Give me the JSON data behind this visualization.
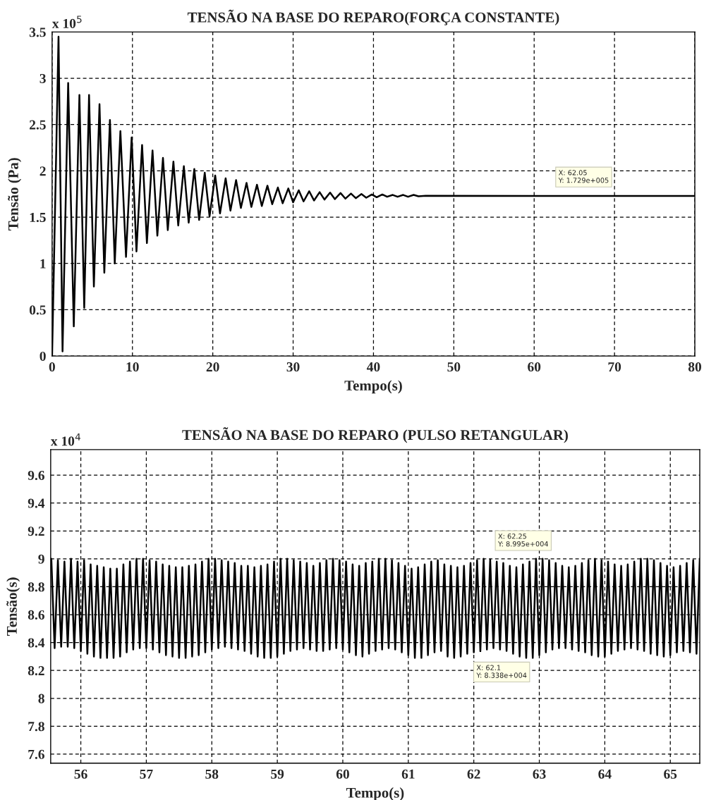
{
  "chart_data": [
    {
      "type": "line",
      "title": "TENSÃO NA BASE DO REPARO(FORÇA CONSTANTE)",
      "xlabel": "Tempo(s)",
      "ylabel": "Tensão (Pa)",
      "xlim": [
        0,
        80
      ],
      "xticks": [
        0,
        10,
        20,
        30,
        40,
        50,
        60,
        70,
        80
      ],
      "ylim": [
        0,
        3.5
      ],
      "yticks": [
        0,
        0.5,
        1,
        1.5,
        2,
        2.5,
        3,
        3.5
      ],
      "grid": true,
      "line_style": "solid",
      "annotations": [
        "x 10$^{5}$",
        {
          "text": "X: 62.05\nY: 1.729e+005",
          "x": 62.05,
          "y": 1.729
        }
      ],
      "series": [
        {
          "color": "#000000",
          "x": [
            0,
            0.8,
            1.3,
            2.0,
            2.7,
            3.4,
            4.0,
            4.6,
            5.2,
            5.9,
            6.5,
            7.2,
            7.8,
            8.5,
            9.2,
            9.9,
            10.5,
            11.2,
            11.8,
            12.5,
            13.1,
            13.8,
            14.4,
            15.1,
            15.7,
            16.4,
            17.0,
            17.7,
            18.3,
            19.0,
            19.6,
            20.3,
            20.9,
            21.6,
            22.2,
            22.9,
            23.5,
            24.2,
            24.8,
            25.5,
            26.1,
            26.8,
            27.4,
            28.1,
            28.7,
            29.4,
            30.0,
            30.7,
            31.3,
            32.0,
            32.6,
            33.3,
            33.9,
            34.6,
            35.2,
            35.9,
            36.5,
            37.2,
            37.8,
            38.5,
            39.1,
            39.8,
            40.4,
            41.1,
            41.7,
            42.4,
            43.0,
            43.7,
            44.3,
            45.0,
            45.6,
            46.5,
            62.05,
            80
          ],
          "values": [
            0,
            3.45,
            0.05,
            2.95,
            0.32,
            2.82,
            0.52,
            2.82,
            0.75,
            2.72,
            0.9,
            2.55,
            1.0,
            2.43,
            1.07,
            2.36,
            1.13,
            2.28,
            1.22,
            2.22,
            1.3,
            2.14,
            1.36,
            2.1,
            1.41,
            2.05,
            1.44,
            2.02,
            1.47,
            1.98,
            1.51,
            1.95,
            1.54,
            1.92,
            1.57,
            1.9,
            1.6,
            1.87,
            1.61,
            1.85,
            1.62,
            1.84,
            1.64,
            1.82,
            1.65,
            1.81,
            1.66,
            1.79,
            1.67,
            1.78,
            1.68,
            1.77,
            1.69,
            1.765,
            1.695,
            1.76,
            1.7,
            1.755,
            1.705,
            1.75,
            1.71,
            1.745,
            1.715,
            1.745,
            1.72,
            1.74,
            1.72,
            1.74,
            1.72,
            1.74,
            1.725,
            1.73,
            1.729,
            1.729
          ]
        }
      ]
    },
    {
      "type": "line",
      "title": "TENSÃO NA BASE DO REPARO (PULSO RETANGULAR)",
      "xlabel": "Tempo(s)",
      "ylabel": "Tensão(s)",
      "xlim": [
        55.54,
        65.45
      ],
      "xticks": [
        56,
        57,
        58,
        59,
        60,
        61,
        62,
        63,
        64,
        65
      ],
      "ylim": [
        7.535,
        9.783
      ],
      "yticks": [
        7.6,
        7.8,
        8,
        8.2,
        8.4,
        8.6,
        8.8,
        9,
        9.2,
        9.4,
        9.6
      ],
      "grid": true,
      "line_style": "solid",
      "annotations": [
        "x 10$^{4}$",
        {
          "text": "X: 62.25\nY: 8.995e+004",
          "x": 62.25,
          "y": 8.995
        },
        {
          "text": "X: 62.1\nY: 8.338e+004",
          "x": 62.1,
          "y": 8.338
        }
      ],
      "series": [
        {
          "color": "#000000",
          "x": [
            55.55,
            55.6,
            55.65,
            55.7,
            55.75,
            55.8,
            55.85,
            55.9,
            55.95,
            56.0,
            56.05,
            56.1,
            56.15,
            56.2,
            56.25,
            56.3,
            56.35,
            56.4,
            56.45,
            56.5,
            56.55,
            56.6,
            56.65,
            56.7,
            56.75,
            56.8,
            56.85,
            56.9,
            56.95,
            57.0,
            57.05,
            57.1,
            57.15,
            57.2,
            57.25,
            57.3,
            57.35,
            57.4,
            57.45,
            57.5,
            57.55,
            57.6,
            57.65,
            57.7,
            57.75,
            57.8,
            57.85,
            57.9,
            57.95,
            58.0,
            58.05,
            58.1,
            58.15,
            58.2,
            58.25,
            58.3,
            58.35,
            58.4,
            58.45,
            58.5,
            58.55,
            58.6,
            58.65,
            58.7,
            58.75,
            58.8,
            58.85,
            58.9,
            58.95,
            59.0,
            59.05,
            59.1,
            59.15,
            59.2,
            59.25,
            59.3,
            59.35,
            59.4,
            59.45,
            59.5,
            59.55,
            59.6,
            59.65,
            59.7,
            59.75,
            59.8,
            59.85,
            59.9,
            59.95,
            60.0,
            60.05,
            60.1,
            60.15,
            60.2,
            60.25,
            60.3,
            60.35,
            60.4,
            60.45,
            60.5,
            60.55,
            60.6,
            60.65,
            60.7,
            60.75,
            60.8,
            60.85,
            60.9,
            60.95,
            61.0,
            61.05,
            61.1,
            61.15,
            61.2,
            61.25,
            61.3,
            61.35,
            61.4,
            61.45,
            61.5,
            61.55,
            61.6,
            61.65,
            61.7,
            61.75,
            61.8,
            61.85,
            61.9,
            61.95,
            62.0,
            62.05,
            62.1,
            62.15,
            62.2,
            62.25,
            62.3,
            62.35,
            62.4,
            62.45,
            62.5,
            62.55,
            62.6,
            62.65,
            62.7,
            62.75,
            62.8,
            62.85,
            62.9,
            62.95,
            63.0,
            63.05,
            63.1,
            63.15,
            63.2,
            63.25,
            63.3,
            63.35,
            63.4,
            63.45,
            63.5,
            63.55,
            63.6,
            63.65,
            63.7,
            63.75,
            63.8,
            63.85,
            63.9,
            63.95,
            64.0,
            64.05,
            64.1,
            64.15,
            64.2,
            64.25,
            64.3,
            64.35,
            64.4,
            64.45,
            64.5,
            64.55,
            64.6,
            64.65,
            64.7,
            64.75,
            64.8,
            64.85,
            64.9,
            64.95,
            65.0,
            65.05,
            65.1,
            65.15,
            65.2,
            65.25,
            65.3,
            65.35,
            65.4,
            65.45
          ],
          "values": [
            9.0,
            8.36,
            8.99,
            8.37,
            8.98,
            8.37,
            9.0,
            8.36,
            8.98,
            8.34,
            8.99,
            8.32,
            8.96,
            8.3,
            8.95,
            8.29,
            8.94,
            8.29,
            8.93,
            8.29,
            8.93,
            8.3,
            8.96,
            8.33,
            8.98,
            8.35,
            9.0,
            8.36,
            9.0,
            8.36,
            8.99,
            8.35,
            8.98,
            8.33,
            8.96,
            8.31,
            8.95,
            8.3,
            8.94,
            8.29,
            8.94,
            8.29,
            8.95,
            8.3,
            8.96,
            8.31,
            8.98,
            8.33,
            9.0,
            8.35,
            9.0,
            8.36,
            8.99,
            8.37,
            8.98,
            8.36,
            8.97,
            8.35,
            8.95,
            8.34,
            8.95,
            8.32,
            8.94,
            8.3,
            8.95,
            8.29,
            8.96,
            8.29,
            8.98,
            8.3,
            9.0,
            8.32,
            9.0,
            8.34,
            8.99,
            8.35,
            8.98,
            8.36,
            8.97,
            8.35,
            8.95,
            8.34,
            8.97,
            8.34,
            8.99,
            8.35,
            9.0,
            8.36,
            8.99,
            8.35,
            8.98,
            8.33,
            8.96,
            8.31,
            8.95,
            8.3,
            8.97,
            8.32,
            8.98,
            8.34,
            9.0,
            8.35,
            9.0,
            8.36,
            8.99,
            8.35,
            8.97,
            8.33,
            8.95,
            8.31,
            8.93,
            8.29,
            8.94,
            8.29,
            8.96,
            8.31,
            8.98,
            8.33,
            8.99,
            8.34,
            8.96,
            8.3,
            8.95,
            8.29,
            8.94,
            8.3,
            8.95,
            8.32,
            8.97,
            8.33,
            8.99,
            8.338,
            9.0,
            8.35,
            8.995,
            8.36,
            8.98,
            8.35,
            8.97,
            8.34,
            8.95,
            8.32,
            8.94,
            8.3,
            8.96,
            8.29,
            8.98,
            8.29,
            9.0,
            8.31,
            9.0,
            8.33,
            8.99,
            8.35,
            8.97,
            8.36,
            8.95,
            8.36,
            8.94,
            8.35,
            8.95,
            8.34,
            8.97,
            8.33,
            8.99,
            8.31,
            9.0,
            8.3,
            8.99,
            8.3,
            8.98,
            8.32,
            8.96,
            8.34,
            8.95,
            8.35,
            8.96,
            8.36,
            8.98,
            8.35,
            9.0,
            8.34,
            9.0,
            8.32,
            8.99,
            8.31,
            8.97,
            8.3,
            8.95,
            8.31,
            8.94,
            8.33,
            8.95,
            8.34,
            8.97,
            8.33,
            8.99,
            8.32,
            9.0
          ]
        }
      ]
    }
  ]
}
